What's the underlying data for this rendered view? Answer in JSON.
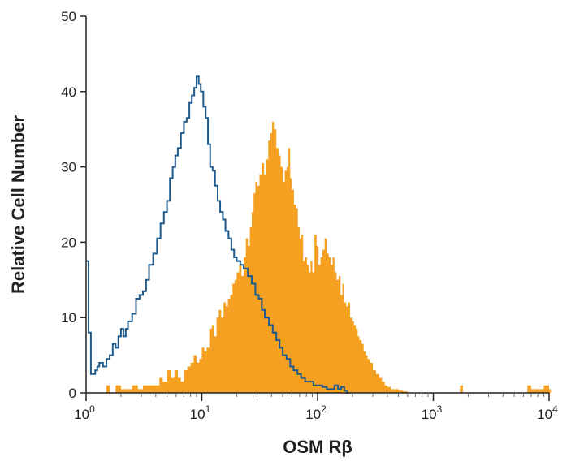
{
  "chart_data": {
    "type": "area",
    "title": "",
    "xlabel": "OSM Rβ",
    "ylabel": "Relative Cell Number",
    "xscale": "log",
    "xlim": [
      1,
      10000
    ],
    "ylim": [
      0,
      50
    ],
    "xticks": [
      {
        "base": "10",
        "exp": "0"
      },
      {
        "base": "10",
        "exp": "1"
      },
      {
        "base": "10",
        "exp": "2"
      },
      {
        "base": "10",
        "exp": "3"
      },
      {
        "base": "10",
        "exp": "4"
      }
    ],
    "yticks": [
      "0",
      "10",
      "20",
      "30",
      "40",
      "50"
    ],
    "grid": false,
    "legend": "none",
    "series": [
      {
        "style": "outline",
        "color": "#1f5a8c",
        "x": [
          1.0,
          1.05,
          1.1,
          1.15,
          1.2,
          1.25,
          1.3,
          1.4,
          1.5,
          1.6,
          1.7,
          1.8,
          1.9,
          2.0,
          2.1,
          2.2,
          2.3,
          2.5,
          2.7,
          2.9,
          3.1,
          3.3,
          3.5,
          3.8,
          4.1,
          4.4,
          4.7,
          5.0,
          5.3,
          5.6,
          5.9,
          6.2,
          6.6,
          7.0,
          7.4,
          7.8,
          8.2,
          8.6,
          9.0,
          9.4,
          9.8,
          10.3,
          10.8,
          11.3,
          11.8,
          12.4,
          13.0,
          13.7,
          14.4,
          15.2,
          16.0,
          17.0,
          18.0,
          19.0,
          20.0,
          21.5,
          23.0,
          25.0,
          27.0,
          29.0,
          31.0,
          33.0,
          35.0,
          38.0,
          41.0,
          44.0,
          47.0,
          50.0,
          54.0,
          58.0,
          62.0,
          67.0,
          72.0,
          78.0,
          85.0,
          92.0,
          100.0,
          110.0,
          120.0,
          130.0,
          140.0,
          150.0,
          160.0,
          170.0,
          180.0
        ],
        "y": [
          17.5,
          8.0,
          2.5,
          2.5,
          3.0,
          3.5,
          4.0,
          3.5,
          4.5,
          5.0,
          6.5,
          6.0,
          7.5,
          8.5,
          7.5,
          8.5,
          9.5,
          10.5,
          12.5,
          13.0,
          13.5,
          15.0,
          17.0,
          18.5,
          20.5,
          22.5,
          24.0,
          25.5,
          28.5,
          30.0,
          31.5,
          32.5,
          34.5,
          36.0,
          36.5,
          38.5,
          39.5,
          40.5,
          42.0,
          41.0,
          40.0,
          38.0,
          36.5,
          33.0,
          30.0,
          29.5,
          27.5,
          25.5,
          24.0,
          23.0,
          21.5,
          20.5,
          19.0,
          18.0,
          17.5,
          17.0,
          16.5,
          15.5,
          14.5,
          13.0,
          12.5,
          11.0,
          10.0,
          9.0,
          8.0,
          7.0,
          6.0,
          5.0,
          4.5,
          3.5,
          3.0,
          2.5,
          2.0,
          1.5,
          1.5,
          1.0,
          1.0,
          0.8,
          0.5,
          0.5,
          1.0,
          0.5,
          0.8,
          0.3,
          0.0
        ]
      },
      {
        "style": "filled",
        "color": "#f5a020",
        "x": [
          1.4,
          1.5,
          1.6,
          1.8,
          2.0,
          2.2,
          2.5,
          2.8,
          3.1,
          3.4,
          3.7,
          4.0,
          4.3,
          4.6,
          5.0,
          5.4,
          5.8,
          6.2,
          6.6,
          7.0,
          7.5,
          8.0,
          8.5,
          9.0,
          9.5,
          10.0,
          10.5,
          11.0,
          11.6,
          12.2,
          12.8,
          13.4,
          14.0,
          14.7,
          15.4,
          16.1,
          16.8,
          17.6,
          18.4,
          19.2,
          20.0,
          21.0,
          22.0,
          23.0,
          24.0,
          25.0,
          26.0,
          27.0,
          28.0,
          29.0,
          30.0,
          31.5,
          33.0,
          34.5,
          36.0,
          37.5,
          39.0,
          40.5,
          42.0,
          44.0,
          46.0,
          48.0,
          50.0,
          52.0,
          54.0,
          56.0,
          58.0,
          60.0,
          62.5,
          65.0,
          67.5,
          70.0,
          72.5,
          75.0,
          78.0,
          81.0,
          84.0,
          87.0,
          90.0,
          94.0,
          98.0,
          102.0,
          106.0,
          110.0,
          115.0,
          120.0,
          125.0,
          130.0,
          135.0,
          140.0,
          146.0,
          152.0,
          158.0,
          164.0,
          170.0,
          177.0,
          184.0,
          191.0,
          198.0,
          206.0,
          214.0,
          222.0,
          230.0,
          240.0,
          250.0,
          260.0,
          270.0,
          285.0,
          300.0,
          320.0,
          340.0,
          360.0,
          380.0,
          400.0,
          430.0,
          460.0,
          500.0,
          550.0,
          600.0,
          1700.0,
          1800.0,
          6500.0,
          7000.0,
          8000.0,
          9000.0,
          10000.0
        ],
        "y": [
          0.0,
          1.0,
          0.0,
          1.0,
          0.5,
          0.5,
          1.0,
          0.5,
          1.0,
          1.0,
          1.0,
          1.0,
          2.0,
          1.5,
          3.0,
          2.0,
          3.0,
          2.0,
          1.5,
          3.0,
          3.5,
          4.0,
          5.0,
          4.0,
          4.5,
          6.0,
          5.5,
          6.0,
          8.5,
          9.0,
          7.5,
          10.0,
          11.0,
          10.0,
          12.0,
          11.5,
          12.5,
          13.0,
          14.5,
          15.0,
          16.0,
          17.0,
          15.5,
          18.0,
          20.5,
          19.5,
          22.0,
          24.0,
          26.5,
          28.0,
          27.5,
          29.0,
          30.5,
          29.0,
          31.0,
          33.5,
          34.5,
          36.0,
          35.0,
          32.5,
          31.5,
          30.0,
          28.0,
          29.5,
          30.0,
          32.5,
          28.5,
          27.0,
          25.0,
          24.5,
          22.0,
          20.5,
          21.0,
          17.5,
          18.0,
          17.0,
          16.0,
          17.5,
          16.0,
          21.0,
          19.5,
          17.0,
          18.0,
          19.0,
          20.5,
          18.5,
          18.0,
          17.0,
          18.0,
          16.0,
          15.0,
          15.5,
          13.0,
          14.5,
          12.0,
          11.5,
          12.0,
          10.0,
          9.5,
          9.0,
          8.5,
          7.5,
          7.0,
          6.5,
          5.5,
          5.0,
          4.5,
          4.0,
          3.0,
          2.5,
          2.0,
          1.5,
          1.0,
          0.8,
          0.5,
          0.5,
          0.3,
          0.2,
          0.0,
          1.0,
          0.0,
          1.0,
          0.5,
          0.5,
          1.0,
          0.5
        ]
      }
    ]
  }
}
